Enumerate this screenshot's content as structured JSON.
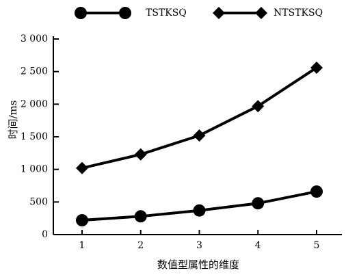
{
  "chart_data": {
    "type": "line",
    "title": "",
    "xlabel": "数值型属性的维度",
    "ylabel": "时间/ms",
    "categories": [
      "1",
      "2",
      "3",
      "4",
      "5"
    ],
    "ylim": [
      0,
      3000
    ],
    "yticks": [
      0,
      500,
      1000,
      1500,
      2000,
      2500,
      3000
    ],
    "ytick_labels": [
      "0",
      "500",
      "1 000",
      "1 500",
      "2 000",
      "2 500",
      "3 000"
    ],
    "grid": false,
    "legend_position": "top",
    "series": [
      {
        "name": "TSTKSQ",
        "marker": "circle",
        "values": [
          220,
          280,
          370,
          480,
          660
        ]
      },
      {
        "name": "NTSTKSQ",
        "marker": "diamond",
        "values": [
          1020,
          1230,
          1520,
          1970,
          2560
        ]
      }
    ]
  },
  "colors": {
    "line": "#000000"
  }
}
